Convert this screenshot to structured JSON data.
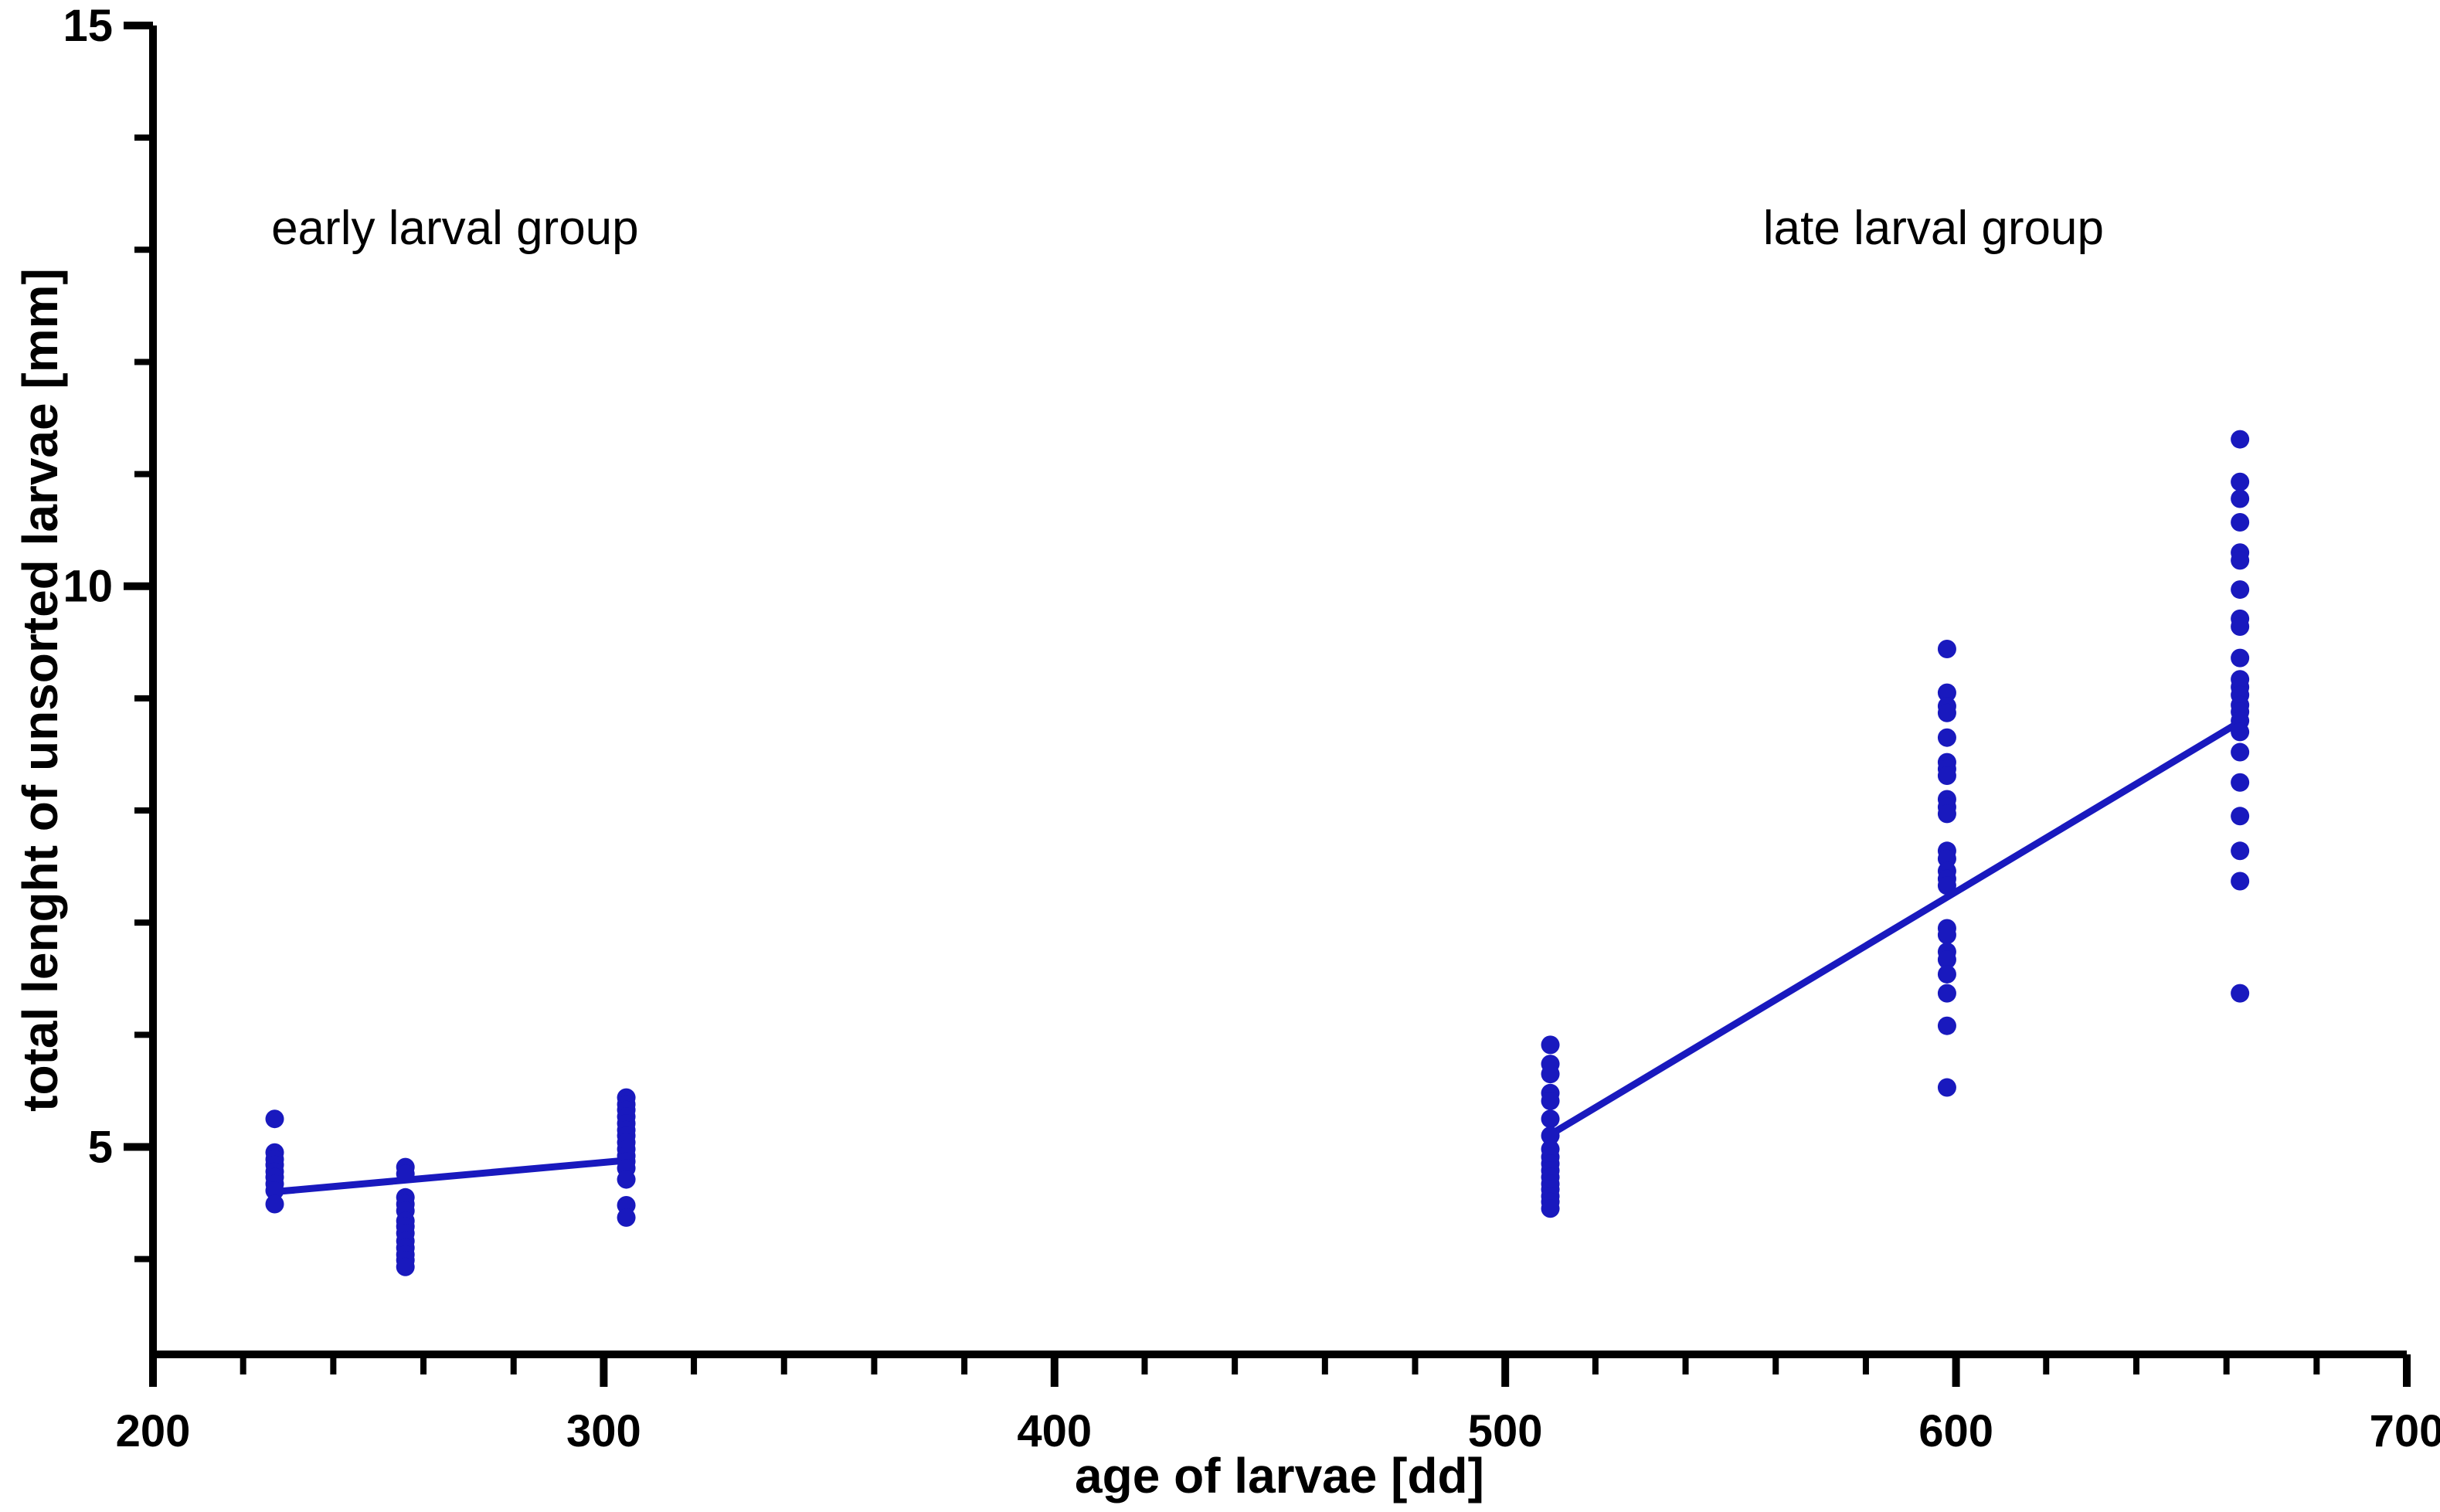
{
  "chart_data": {
    "type": "scatter",
    "title": "",
    "xlabel": "age of larvae [dd]",
    "ylabel": "total lenght of unsorted larvae [mm]",
    "xlim": [
      200,
      700
    ],
    "ylim": [
      3.15,
      15
    ],
    "grid": false,
    "legend": "none",
    "point_color": "#1919be",
    "line_color": "#1919be",
    "axis_color": "#000000",
    "x_ticks_major": [
      200,
      300,
      400,
      500,
      600,
      700
    ],
    "x_tick_labels": [
      "200",
      "300",
      "400",
      "500",
      "600",
      "700"
    ],
    "x_ticks_minor": [
      220,
      240,
      260,
      280,
      320,
      340,
      360,
      380,
      420,
      440,
      460,
      480,
      520,
      540,
      560,
      580,
      620,
      640,
      660,
      680
    ],
    "y_ticks_major": [
      5,
      10,
      15
    ],
    "y_tick_labels": [
      "5",
      "10",
      "15"
    ],
    "y_ticks_minor": [
      4,
      6,
      7,
      8,
      9,
      11,
      12,
      13,
      14
    ],
    "annotations": [
      {
        "text": "early larval group",
        "x": 267,
        "y": 13.2
      },
      {
        "text": "late larval group",
        "x": 595,
        "y": 13.2
      }
    ],
    "groups": [
      {
        "name": "early larval group",
        "regression_line": {
          "x1": 227,
          "y1": 4.6,
          "x2": 305,
          "y2": 4.88
        },
        "clusters": [
          {
            "age_dd": 227,
            "lengths_mm": [
              5.25,
              4.95,
              4.89,
              4.84,
              4.78,
              4.73,
              4.67,
              4.61,
              4.49
            ]
          },
          {
            "age_dd": 256,
            "lengths_mm": [
              4.82,
              4.76,
              4.55,
              4.49,
              4.43,
              4.34,
              4.29,
              4.23,
              4.16,
              4.1,
              4.04,
              3.99,
              3.93
            ]
          },
          {
            "age_dd": 305,
            "lengths_mm": [
              5.44,
              5.38,
              5.33,
              5.27,
              5.21,
              5.15,
              5.1,
              5.04,
              4.98,
              4.92,
              4.87,
              4.81,
              4.71,
              4.48,
              4.37
            ]
          }
        ]
      },
      {
        "name": "late larval group",
        "regression_line": {
          "x1": 510,
          "y1": 5.11,
          "x2": 663,
          "y2": 8.79
        },
        "clusters": [
          {
            "age_dd": 510,
            "lengths_mm": [
              5.91,
              5.74,
              5.65,
              5.48,
              5.41,
              5.25,
              5.1,
              4.98,
              4.91,
              4.85,
              4.79,
              4.73,
              4.67,
              4.62,
              4.56,
              4.51,
              4.45
            ]
          },
          {
            "age_dd": 598,
            "lengths_mm": [
              9.44,
              9.05,
              8.93,
              8.87,
              8.65,
              8.43,
              8.37,
              8.31,
              8.1,
              8.03,
              7.97,
              7.64,
              7.57,
              7.46,
              7.39,
              7.33,
              6.95,
              6.89,
              6.74,
              6.67,
              6.54,
              6.37,
              6.08,
              5.53
            ]
          },
          {
            "age_dd": 663,
            "lengths_mm": [
              11.31,
              10.93,
              10.78,
              10.57,
              10.3,
              10.23,
              9.97,
              9.71,
              9.64,
              9.36,
              9.17,
              9.1,
              9.03,
              8.94,
              8.88,
              8.8,
              8.7,
              8.52,
              8.25,
              7.95,
              7.64,
              7.37,
              6.37
            ]
          }
        ]
      }
    ]
  }
}
